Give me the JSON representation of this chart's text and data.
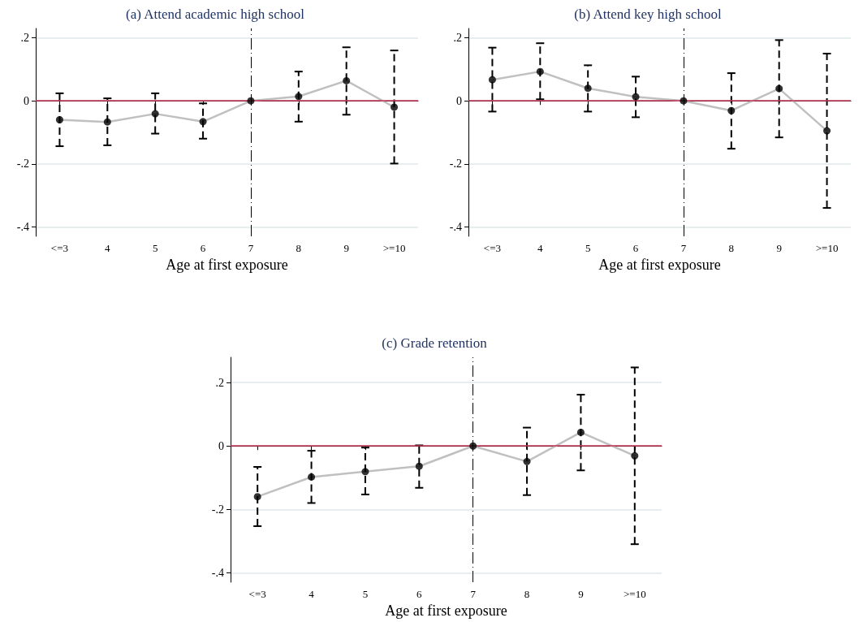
{
  "chart_data": [
    {
      "type": "line",
      "title": "(a) Attend academic high school",
      "xlabel": "Age at first exposure",
      "categories": [
        "<=3",
        "4",
        "5",
        "6",
        "7",
        "8",
        "9",
        ">=10"
      ],
      "ylim": [
        -0.43,
        0.23
      ],
      "yticks": [
        {
          "value": -0.4,
          "label": "-.4"
        },
        {
          "value": -0.2,
          "label": "-.2"
        },
        {
          "value": 0,
          "label": "0"
        },
        {
          "value": 0.2,
          "label": ".2"
        }
      ],
      "grid": "y",
      "series": [
        {
          "color": "#c0c0c0",
          "marker": "none",
          "values": [
            -0.06,
            -0.067,
            -0.041,
            -0.066,
            0,
            0.014,
            0.064,
            -0.02
          ]
        },
        {
          "type": "scatter",
          "color": "#000000",
          "marker": "circle",
          "values": [
            -0.06,
            -0.067,
            -0.041,
            -0.066,
            0,
            0.014,
            0.064,
            -0.02
          ],
          "errors": [
            [
              -0.144,
              0.024
            ],
            [
              -0.141,
              0.008
            ],
            [
              -0.104,
              0.024
            ],
            [
              -0.12,
              -0.008
            ],
            null,
            [
              -0.066,
              0.093
            ],
            [
              -0.044,
              0.17
            ],
            [
              -0.199,
              0.16
            ]
          ]
        }
      ],
      "ref_lines": [
        {
          "axis": "y",
          "value": 0,
          "color": "#c8385a",
          "line_style": "solid"
        },
        {
          "axis": "x",
          "value": "7",
          "color": "#000000",
          "line_style": "dashed"
        }
      ]
    },
    {
      "type": "line",
      "title": "(b) Attend key high school",
      "xlabel": "Age at first exposure",
      "categories": [
        "<=3",
        "4",
        "5",
        "6",
        "7",
        "8",
        "9",
        ">=10"
      ],
      "ylim": [
        -0.43,
        0.23
      ],
      "yticks": [
        {
          "value": -0.4,
          "label": "-.4"
        },
        {
          "value": -0.2,
          "label": "-.2"
        },
        {
          "value": 0,
          "label": "0"
        },
        {
          "value": 0.2,
          "label": ".2"
        }
      ],
      "grid": "y",
      "series": [
        {
          "color": "#c0c0c0",
          "marker": "none",
          "values": [
            0.067,
            0.093,
            0.04,
            0.013,
            0,
            -0.031,
            0.039,
            -0.095
          ]
        },
        {
          "type": "scatter",
          "color": "#000000",
          "marker": "circle",
          "values": [
            0.067,
            0.093,
            0.04,
            0.013,
            0,
            -0.031,
            0.039,
            -0.095
          ],
          "errors": [
            [
              -0.034,
              0.169
            ],
            [
              0.005,
              0.183
            ],
            [
              -0.034,
              0.113
            ],
            [
              -0.052,
              0.077
            ],
            null,
            [
              -0.152,
              0.088
            ],
            [
              -0.116,
              0.193
            ],
            [
              -0.34,
              0.15
            ]
          ]
        }
      ],
      "ref_lines": [
        {
          "axis": "y",
          "value": 0,
          "color": "#c8385a",
          "line_style": "solid"
        },
        {
          "axis": "x",
          "value": "7",
          "color": "#000000",
          "line_style": "dashed"
        }
      ]
    },
    {
      "type": "line",
      "title": "(c) Grade retention",
      "xlabel": "Age at first exposure",
      "categories": [
        "<=3",
        "4",
        "5",
        "6",
        "7",
        "8",
        "9",
        ">=10"
      ],
      "ylim": [
        -0.43,
        0.28
      ],
      "yticks": [
        {
          "value": -0.4,
          "label": "-.4"
        },
        {
          "value": -0.2,
          "label": "-.2"
        },
        {
          "value": 0,
          "label": "0"
        },
        {
          "value": 0.2,
          "label": ".2"
        }
      ],
      "grid": "y",
      "series": [
        {
          "color": "#c0c0c0",
          "marker": "none",
          "values": [
            -0.16,
            -0.098,
            -0.081,
            -0.064,
            0,
            -0.049,
            0.043,
            -0.031
          ]
        },
        {
          "type": "scatter",
          "color": "#000000",
          "marker": "circle",
          "values": [
            -0.16,
            -0.098,
            -0.081,
            -0.064,
            0,
            -0.049,
            0.043,
            -0.031
          ],
          "errors": [
            [
              -0.253,
              -0.066
            ],
            [
              -0.18,
              -0.015
            ],
            [
              -0.153,
              -0.005
            ],
            [
              -0.132,
              0.002
            ],
            null,
            [
              -0.155,
              0.058
            ],
            [
              -0.077,
              0.162
            ],
            [
              -0.31,
              0.248
            ]
          ]
        }
      ],
      "ref_lines": [
        {
          "axis": "y",
          "value": 0,
          "color": "#c8385a",
          "line_style": "solid"
        },
        {
          "axis": "x",
          "value": "7",
          "color": "#000000",
          "line_style": "dashed"
        }
      ]
    }
  ]
}
